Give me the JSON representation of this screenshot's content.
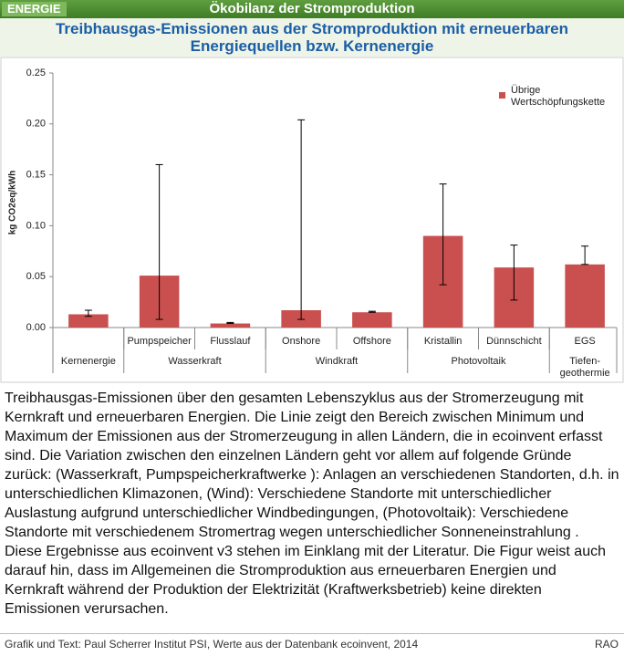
{
  "header": {
    "tag": "ENERGIE",
    "section": "Ökobilanz der Stromproduktion"
  },
  "chart_data": {
    "type": "bar",
    "title": "Treibhausgas-Emissionen aus der Stromproduktion mit erneuerbaren Energiequellen bzw. Kernenergie",
    "y_label": "kg CO2eq/kWh",
    "categories": [
      null,
      "Pumpspeicher",
      "Flusslauf",
      "Onshore",
      "Offshore",
      "Kristallin",
      "Dünnschicht",
      "EGS"
    ],
    "groups": [
      {
        "label": "Kernenergie",
        "count": 1
      },
      {
        "label": "Wasserkraft",
        "count": 2
      },
      {
        "label": "Windkraft",
        "count": 2
      },
      {
        "label": "Photovoltaik",
        "count": 2
      },
      {
        "label": "Tiefen- geothermie",
        "count": 1
      }
    ],
    "series": [
      {
        "name": "Übrige Wertschöpfungskette",
        "color": "#c9504f",
        "values": [
          0.013,
          0.051,
          0.004,
          0.017,
          0.015,
          0.09,
          0.059,
          0.062
        ],
        "min": [
          0.011,
          0.008,
          0.004,
          0.008,
          0.015,
          0.042,
          0.027,
          0.062
        ],
        "max": [
          0.017,
          0.16,
          0.005,
          0.204,
          0.016,
          0.141,
          0.081,
          0.08
        ]
      }
    ],
    "ylim": [
      0,
      0.25
    ],
    "yticks": [
      {
        "value": 0,
        "label": "0.00"
      },
      {
        "value": 0.05,
        "label": "0.05"
      },
      {
        "value": 0.1,
        "label": "0.10"
      },
      0.15,
      {
        "value": 0.2,
        "label": "0.20"
      },
      0.25
    ],
    "grid": false,
    "legend": "top-right"
  },
  "description": "Treibhausgas-Emissionen über den gesamten Lebenszyklus aus der Stromerzeugung mit Kernkraft und erneuerbaren Energien. Die Linie zeigt den Bereich zwischen Minimum und Maximum der Emissionen aus der Stromerzeugung in allen Ländern, die in ecoinvent erfasst sind. Die Variation zwischen den einzelnen Ländern geht vor allem auf folgende Gründe zurück: (Wasserkraft, Pumpspeicherkraftwerke ): Anlagen an verschiedenen Standorten, d.h. in unterschiedlichen Klimazonen, (Wind): Verschiedene Standorte mit unterschiedlicher Auslastung aufgrund unterschiedlicher Windbedingungen, (Photovoltaik): Verschiedene Standorte mit verschiedenem Stromertrag wegen unterschiedlicher Sonneneinstrahlung . Diese Ergebnisse aus ecoinvent v3 stehen im Einklang mit der Literatur. Die Figur weist auch darauf hin, dass im Allgemeinen die Stromproduktion aus erneuerbaren Energien und Kernkraft während der Produktion der Elektrizität (Kraftwerksbetrieb) keine direkten Emissionen verursachen.",
  "footer": {
    "source": "Grafik und Text: Paul Scherrer Institut PSI, Werte aus der Datenbank ecoinvent, 2014",
    "code": "RAO"
  }
}
